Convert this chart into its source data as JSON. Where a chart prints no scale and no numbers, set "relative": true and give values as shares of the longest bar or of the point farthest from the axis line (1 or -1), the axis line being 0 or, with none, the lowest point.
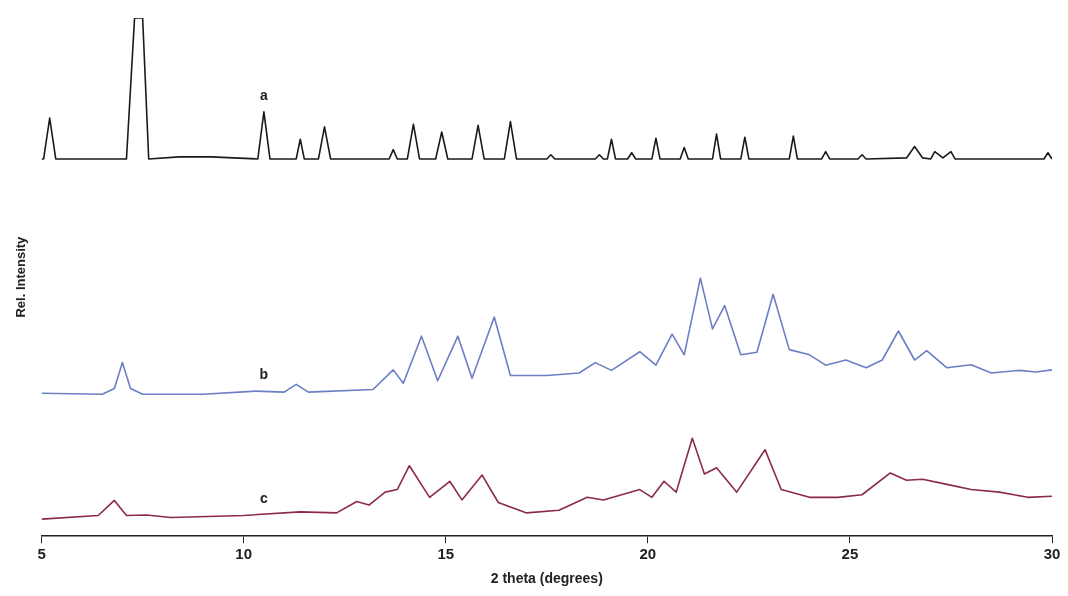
{
  "chart_data": {
    "type": "line",
    "relative": true,
    "xlabel": "2 theta (degrees)",
    "ylabel": "Rel. Intensity",
    "xlim": [
      5,
      30
    ],
    "xticks": [
      5,
      10,
      15,
      20,
      25,
      30
    ],
    "grid": false,
    "legend": false,
    "marker": "none",
    "line_style": "solid",
    "series": [
      {
        "name": "a",
        "color": "#1a1a1a",
        "x": [
          5,
          5.05,
          5.2,
          5.35,
          7.1,
          7.3,
          7.5,
          7.65,
          8.4,
          9.2,
          10.35,
          10.5,
          10.65,
          11.3,
          11.4,
          11.5,
          11.85,
          12.0,
          12.15,
          13.6,
          13.7,
          13.8,
          14.05,
          14.2,
          14.35,
          14.75,
          14.9,
          15.05,
          15.65,
          15.8,
          15.95,
          16.45,
          16.6,
          16.75,
          17.5,
          17.6,
          17.7,
          18.7,
          18.8,
          18.9,
          19.0,
          19.1,
          19.2,
          19.5,
          19.6,
          19.7,
          20.1,
          20.2,
          20.3,
          20.8,
          20.9,
          21.0,
          21.6,
          21.7,
          21.8,
          22.3,
          22.4,
          22.5,
          23.5,
          23.6,
          23.7,
          24.3,
          24.4,
          24.5,
          25.2,
          25.3,
          25.4,
          26.4,
          26.6,
          26.8,
          27.0,
          27.1,
          27.3,
          27.5,
          27.6,
          29.8,
          29.9,
          30
        ],
        "values": [
          0.728,
          0.728,
          0.807,
          0.728,
          0.728,
          1.0,
          1.0,
          0.728,
          0.732,
          0.732,
          0.728,
          0.819,
          0.728,
          0.728,
          0.766,
          0.728,
          0.728,
          0.79,
          0.728,
          0.728,
          0.746,
          0.728,
          0.728,
          0.795,
          0.728,
          0.728,
          0.78,
          0.728,
          0.728,
          0.793,
          0.728,
          0.728,
          0.8,
          0.728,
          0.728,
          0.736,
          0.728,
          0.728,
          0.736,
          0.728,
          0.728,
          0.766,
          0.728,
          0.728,
          0.74,
          0.728,
          0.728,
          0.768,
          0.728,
          0.728,
          0.75,
          0.728,
          0.728,
          0.776,
          0.728,
          0.728,
          0.77,
          0.728,
          0.728,
          0.772,
          0.728,
          0.728,
          0.742,
          0.728,
          0.728,
          0.736,
          0.728,
          0.73,
          0.752,
          0.73,
          0.728,
          0.742,
          0.73,
          0.742,
          0.728,
          0.728,
          0.74,
          0.728
        ]
      },
      {
        "name": "b",
        "color": "#6b7fc4",
        "x": [
          5,
          6.5,
          6.8,
          7.0,
          7.2,
          7.5,
          9,
          10.3,
          11,
          11.3,
          11.6,
          13.2,
          13.7,
          13.95,
          14.4,
          14.8,
          15.3,
          15.65,
          16.2,
          16.6,
          17.5,
          18.3,
          18.7,
          19.1,
          19.8,
          20.2,
          20.6,
          20.9,
          21.3,
          21.6,
          21.9,
          22.3,
          22.7,
          23.1,
          23.5,
          24.0,
          24.4,
          24.9,
          25.4,
          25.8,
          26.2,
          26.6,
          26.9,
          27.4,
          28.0,
          28.5,
          29.2,
          29.6,
          30
        ],
        "values": [
          0.276,
          0.274,
          0.285,
          0.335,
          0.285,
          0.274,
          0.274,
          0.28,
          0.278,
          0.293,
          0.278,
          0.283,
          0.321,
          0.295,
          0.386,
          0.3,
          0.386,
          0.305,
          0.423,
          0.31,
          0.31,
          0.315,
          0.335,
          0.32,
          0.356,
          0.33,
          0.39,
          0.35,
          0.498,
          0.4,
          0.445,
          0.35,
          0.355,
          0.467,
          0.36,
          0.35,
          0.33,
          0.34,
          0.325,
          0.34,
          0.396,
          0.34,
          0.358,
          0.325,
          0.331,
          0.315,
          0.32,
          0.317,
          0.321
        ]
      },
      {
        "name": "c",
        "color": "#8b2a4a",
        "x": [
          5,
          6.4,
          6.8,
          7.1,
          7.6,
          8.2,
          10,
          11.4,
          12.3,
          12.8,
          13.1,
          13.5,
          13.8,
          14.1,
          14.6,
          15.1,
          15.4,
          15.9,
          16.3,
          17,
          17.8,
          18.5,
          18.9,
          19.8,
          20.1,
          20.4,
          20.7,
          21.1,
          21.4,
          21.7,
          22.2,
          22.9,
          23.3,
          24,
          24.7,
          25.3,
          26.0,
          26.4,
          26.8,
          27.4,
          28,
          28.7,
          29.4,
          30
        ],
        "values": [
          0.033,
          0.04,
          0.069,
          0.04,
          0.041,
          0.036,
          0.04,
          0.047,
          0.045,
          0.067,
          0.06,
          0.085,
          0.09,
          0.136,
          0.075,
          0.106,
          0.07,
          0.118,
          0.065,
          0.045,
          0.05,
          0.075,
          0.07,
          0.09,
          0.075,
          0.106,
          0.085,
          0.189,
          0.12,
          0.132,
          0.085,
          0.167,
          0.09,
          0.075,
          0.075,
          0.08,
          0.122,
          0.108,
          0.11,
          0.1,
          0.09,
          0.085,
          0.075,
          0.077
        ]
      }
    ]
  }
}
